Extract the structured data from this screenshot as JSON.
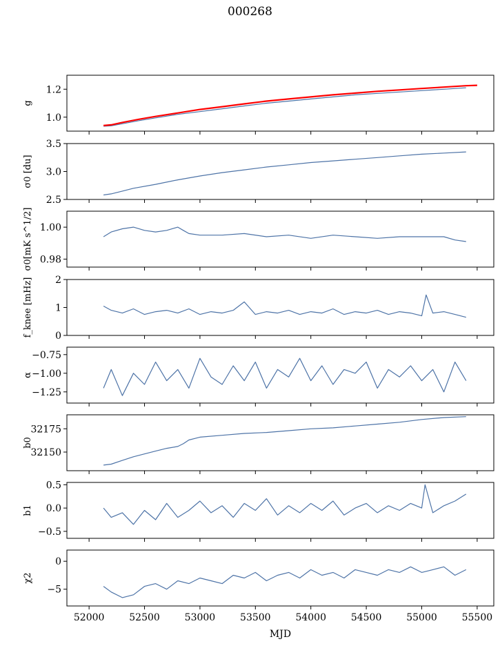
{
  "figure": {
    "title": "000268",
    "xlabel": "MJD"
  },
  "chart_data": [
    {
      "type": "line",
      "ylabel": "g",
      "xlim": [
        51800,
        55650
      ],
      "ylim": [
        0.9,
        1.3
      ],
      "yticks": [
        1.0,
        1.2
      ],
      "ytick_labels": [
        "1.0",
        "1.2"
      ],
      "series": [
        {
          "color": "#4c72a6",
          "x": [
            52130,
            52200,
            52300,
            52450,
            52600,
            52800,
            53000,
            53200,
            53400,
            53600,
            53800,
            54000,
            54200,
            54400,
            54600,
            54800,
            55000,
            55200,
            55400
          ],
          "y": [
            0.935,
            0.938,
            0.953,
            0.975,
            0.995,
            1.02,
            1.04,
            1.06,
            1.08,
            1.1,
            1.115,
            1.13,
            1.145,
            1.16,
            1.17,
            1.18,
            1.19,
            1.2,
            1.21
          ]
        },
        {
          "color": "#ff0000",
          "x": [
            52130,
            52200,
            52300,
            52450,
            52600,
            52800,
            53000,
            53200,
            53400,
            53600,
            53800,
            54000,
            54200,
            54400,
            54600,
            54800,
            55000,
            55200,
            55400,
            55500
          ],
          "y": [
            0.94,
            0.945,
            0.962,
            0.985,
            1.005,
            1.03,
            1.055,
            1.075,
            1.095,
            1.115,
            1.13,
            1.145,
            1.16,
            1.172,
            1.185,
            1.195,
            1.205,
            1.215,
            1.225,
            1.228
          ]
        }
      ]
    },
    {
      "type": "line",
      "ylabel": "σ0 [du]",
      "xlim": [
        51800,
        55650
      ],
      "ylim": [
        2.5,
        3.5
      ],
      "yticks": [
        2.5,
        3.0,
        3.5
      ],
      "ytick_labels": [
        "2.5",
        "3.0",
        "3.5"
      ],
      "series": [
        {
          "color": "#4c72a6",
          "x": [
            52130,
            52200,
            52300,
            52400,
            52600,
            52800,
            53000,
            53200,
            53400,
            53600,
            53800,
            54000,
            54200,
            54400,
            54600,
            54800,
            55000,
            55200,
            55400
          ],
          "y": [
            2.58,
            2.6,
            2.65,
            2.7,
            2.77,
            2.85,
            2.92,
            2.98,
            3.03,
            3.08,
            3.12,
            3.16,
            3.19,
            3.22,
            3.25,
            3.28,
            3.31,
            3.33,
            3.35
          ]
        }
      ]
    },
    {
      "type": "line",
      "ylabel": "σ0[mK s^1/2]",
      "xlim": [
        51800,
        55650
      ],
      "ylim": [
        0.975,
        1.01
      ],
      "yticks": [
        0.98,
        1.0
      ],
      "ytick_labels": [
        "0.98",
        "1.00"
      ],
      "series": [
        {
          "color": "#4c72a6",
          "x": [
            52130,
            52200,
            52300,
            52400,
            52500,
            52600,
            52700,
            52800,
            52850,
            52900,
            53000,
            53200,
            53400,
            53600,
            53800,
            54000,
            54200,
            54400,
            54600,
            54800,
            55000,
            55200,
            55300,
            55400
          ],
          "y": [
            0.994,
            0.997,
            0.999,
            1.0,
            0.998,
            0.997,
            0.998,
            1.0,
            0.998,
            0.996,
            0.995,
            0.995,
            0.996,
            0.994,
            0.995,
            0.993,
            0.995,
            0.994,
            0.993,
            0.994,
            0.994,
            0.994,
            0.992,
            0.991
          ]
        }
      ]
    },
    {
      "type": "line",
      "ylabel": "f_knee [mHz]",
      "xlim": [
        51800,
        55650
      ],
      "ylim": [
        0,
        2
      ],
      "yticks": [
        0,
        1,
        2
      ],
      "ytick_labels": [
        "0",
        "1",
        "2"
      ],
      "series": [
        {
          "color": "#4c72a6",
          "x": [
            52130,
            52200,
            52300,
            52400,
            52500,
            52600,
            52700,
            52800,
            52900,
            53000,
            53100,
            53200,
            53300,
            53400,
            53500,
            53600,
            53700,
            53800,
            53900,
            54000,
            54100,
            54200,
            54300,
            54400,
            54500,
            54600,
            54700,
            54800,
            54900,
            55000,
            55040,
            55100,
            55200,
            55300,
            55400
          ],
          "y": [
            1.05,
            0.9,
            0.8,
            0.95,
            0.75,
            0.85,
            0.9,
            0.8,
            0.95,
            0.75,
            0.85,
            0.8,
            0.9,
            1.2,
            0.75,
            0.85,
            0.8,
            0.9,
            0.75,
            0.85,
            0.8,
            0.95,
            0.75,
            0.85,
            0.8,
            0.9,
            0.75,
            0.85,
            0.8,
            0.7,
            1.45,
            0.8,
            0.85,
            0.75,
            0.65
          ]
        }
      ]
    },
    {
      "type": "line",
      "ylabel": "α",
      "xlim": [
        51800,
        55650
      ],
      "ylim": [
        -1.4,
        -0.65
      ],
      "yticks": [
        -1.25,
        -1.0,
        -0.75
      ],
      "ytick_labels": [
        "−1.25",
        "−1.00",
        "−0.75"
      ],
      "series": [
        {
          "color": "#4c72a6",
          "x": [
            52130,
            52200,
            52300,
            52400,
            52500,
            52600,
            52700,
            52800,
            52900,
            53000,
            53100,
            53200,
            53300,
            53400,
            53500,
            53600,
            53700,
            53800,
            53900,
            54000,
            54100,
            54200,
            54300,
            54400,
            54500,
            54600,
            54700,
            54800,
            54900,
            55000,
            55100,
            55200,
            55300,
            55400
          ],
          "y": [
            -1.2,
            -0.95,
            -1.3,
            -1.0,
            -1.15,
            -0.85,
            -1.1,
            -0.95,
            -1.2,
            -0.8,
            -1.05,
            -1.15,
            -0.9,
            -1.1,
            -0.85,
            -1.2,
            -0.95,
            -1.05,
            -0.8,
            -1.1,
            -0.9,
            -1.15,
            -0.95,
            -1.0,
            -0.85,
            -1.2,
            -0.95,
            -1.05,
            -0.9,
            -1.1,
            -0.95,
            -1.25,
            -0.85,
            -1.1
          ]
        }
      ]
    },
    {
      "type": "line",
      "ylabel": "b0",
      "xlim": [
        51800,
        55650
      ],
      "ylim": [
        32130,
        32190
      ],
      "yticks": [
        32150,
        32175
      ],
      "ytick_labels": [
        "32150",
        "32175"
      ],
      "series": [
        {
          "color": "#4c72a6",
          "x": [
            52130,
            52200,
            52300,
            52400,
            52500,
            52600,
            52700,
            52800,
            52850,
            52900,
            53000,
            53200,
            53400,
            53600,
            53800,
            54000,
            54200,
            54400,
            54600,
            54800,
            55000,
            55200,
            55400
          ],
          "y": [
            32136,
            32137,
            32141,
            32145,
            32148,
            32151,
            32154,
            32156,
            32159,
            32163,
            32166,
            32168,
            32170,
            32171,
            32173,
            32175,
            32176,
            32178,
            32180,
            32182,
            32185,
            32187,
            32188
          ]
        }
      ]
    },
    {
      "type": "line",
      "ylabel": "b1",
      "xlim": [
        51800,
        55650
      ],
      "ylim": [
        -0.65,
        0.55
      ],
      "yticks": [
        -0.5,
        0.0,
        0.5
      ],
      "ytick_labels": [
        "−0.5",
        "0.0",
        "0.5"
      ],
      "series": [
        {
          "color": "#4c72a6",
          "x": [
            52130,
            52200,
            52300,
            52400,
            52500,
            52600,
            52700,
            52800,
            52900,
            53000,
            53100,
            53200,
            53300,
            53400,
            53500,
            53600,
            53700,
            53800,
            53900,
            54000,
            54100,
            54200,
            54300,
            54400,
            54500,
            54600,
            54700,
            54800,
            54900,
            55000,
            55030,
            55100,
            55200,
            55300,
            55400
          ],
          "y": [
            0.0,
            -0.2,
            -0.1,
            -0.35,
            -0.05,
            -0.25,
            0.1,
            -0.2,
            -0.05,
            0.15,
            -0.1,
            0.05,
            -0.2,
            0.1,
            -0.05,
            0.2,
            -0.15,
            0.05,
            -0.1,
            0.1,
            -0.05,
            0.15,
            -0.15,
            0.0,
            0.1,
            -0.1,
            0.05,
            -0.05,
            0.1,
            0.0,
            0.5,
            -0.1,
            0.05,
            0.15,
            0.3
          ]
        }
      ]
    },
    {
      "type": "line",
      "ylabel": "χ2",
      "xlim": [
        51800,
        55650
      ],
      "ylim": [
        -8,
        2
      ],
      "yticks": [
        -5,
        0
      ],
      "ytick_labels": [
        "−5",
        "0"
      ],
      "series": [
        {
          "color": "#4c72a6",
          "x": [
            52130,
            52200,
            52300,
            52400,
            52500,
            52600,
            52700,
            52800,
            52900,
            53000,
            53100,
            53200,
            53300,
            53400,
            53500,
            53600,
            53700,
            53800,
            53900,
            54000,
            54100,
            54200,
            54300,
            54400,
            54500,
            54600,
            54700,
            54800,
            54900,
            55000,
            55100,
            55200,
            55300,
            55400
          ],
          "y": [
            -4.5,
            -5.5,
            -6.5,
            -6.0,
            -4.5,
            -4.0,
            -5.0,
            -3.5,
            -4.0,
            -3.0,
            -3.5,
            -4.0,
            -2.5,
            -3.0,
            -2.0,
            -3.5,
            -2.5,
            -2.0,
            -3.0,
            -1.5,
            -2.5,
            -2.0,
            -3.0,
            -1.5,
            -2.0,
            -2.5,
            -1.5,
            -2.0,
            -1.0,
            -2.0,
            -1.5,
            -1.0,
            -2.5,
            -1.5
          ]
        }
      ]
    }
  ],
  "shared_xaxis": {
    "xticks": [
      52000,
      52500,
      53000,
      53500,
      54000,
      54500,
      55000,
      55500
    ],
    "xtick_labels": [
      "52000",
      "52500",
      "53000",
      "53500",
      "54000",
      "54500",
      "55000",
      "55500"
    ]
  }
}
